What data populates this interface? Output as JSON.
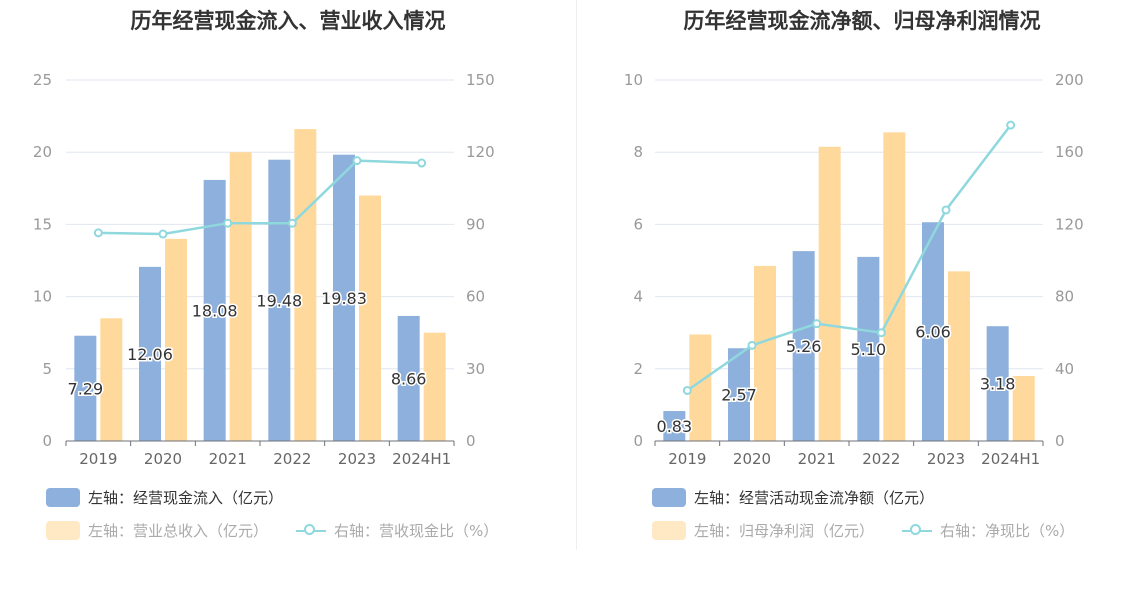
{
  "chart_data": [
    {
      "type": "bar",
      "title": "历年经营现金流入、营业收入情况",
      "categories": [
        "2019",
        "2020",
        "2021",
        "2022",
        "2023",
        "2024H1"
      ],
      "y_left_ticks": [
        "0",
        "5",
        "10",
        "15",
        "20",
        "25"
      ],
      "y_right_ticks": [
        "0",
        "30",
        "60",
        "90",
        "120",
        "150"
      ],
      "ylim_left": [
        0,
        25
      ],
      "ylim_right": [
        0,
        150
      ],
      "series": [
        {
          "name": "左轴：经营现金流入（亿元）",
          "axis": "left",
          "color": "#8eb0dc",
          "values": [
            7.29,
            12.06,
            18.08,
            19.48,
            19.83,
            8.66
          ],
          "labels": [
            "7.29",
            "12.06",
            "18.08",
            "19.48",
            "19.83",
            "8.66"
          ]
        },
        {
          "name": "左轴：营业总收入（亿元）",
          "axis": "left",
          "color": "#ffd99b",
          "values": [
            8.5,
            14.0,
            20.0,
            21.6,
            17.0,
            7.5
          ]
        },
        {
          "name": "右轴：营收现金比（%）",
          "axis": "right",
          "kind": "line",
          "color": "#8fd8dd",
          "values": [
            86.5,
            86.0,
            90.5,
            90.5,
            116.5,
            115.5
          ]
        }
      ],
      "grid": true,
      "legend": "bottom"
    },
    {
      "type": "bar",
      "title": "历年经营现金流净额、归母净利润情况",
      "categories": [
        "2019",
        "2020",
        "2021",
        "2022",
        "2023",
        "2024H1"
      ],
      "y_left_ticks": [
        "0",
        "2",
        "4",
        "6",
        "8",
        "10"
      ],
      "y_right_ticks": [
        "0",
        "40",
        "80",
        "120",
        "160",
        "200"
      ],
      "ylim_left": [
        0,
        10
      ],
      "ylim_right": [
        0,
        200
      ],
      "series": [
        {
          "name": "左轴：经营活动现金流净额（亿元）",
          "axis": "left",
          "color": "#8eb0dc",
          "values": [
            0.83,
            2.57,
            5.26,
            5.1,
            6.06,
            3.18
          ],
          "labels": [
            "0.83",
            "2.57",
            "5.26",
            "5.10",
            "6.06",
            "3.18"
          ]
        },
        {
          "name": "左轴：归母净利润（亿元）",
          "axis": "left",
          "color": "#ffd99b",
          "values": [
            2.95,
            4.85,
            8.15,
            8.55,
            4.7,
            1.8
          ]
        },
        {
          "name": "右轴：净现比（%）",
          "axis": "right",
          "kind": "line",
          "color": "#8fd8dd",
          "values": [
            28,
            53,
            65,
            60,
            128,
            175
          ]
        }
      ],
      "grid": true,
      "legend": "bottom"
    }
  ]
}
